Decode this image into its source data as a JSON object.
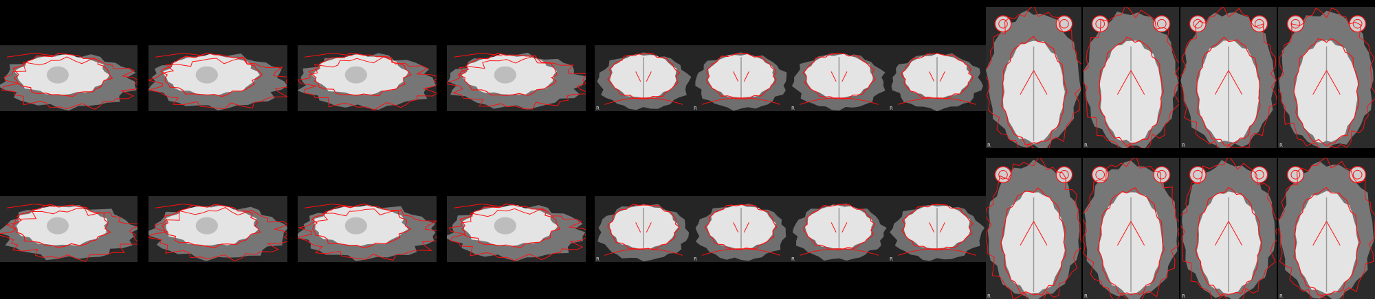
{
  "figure": {
    "rows": [
      {
        "name": "row-1",
        "panels": [
          {
            "view": "sagittal",
            "label": ""
          },
          {
            "view": "sagittal",
            "label": ""
          },
          {
            "view": "sagittal",
            "label": ""
          },
          {
            "view": "sagittal",
            "label": ""
          },
          {
            "view": "coronal",
            "label": "R"
          },
          {
            "view": "coronal",
            "label": "R"
          },
          {
            "view": "coronal",
            "label": "R"
          },
          {
            "view": "coronal",
            "label": "R"
          },
          {
            "view": "axial",
            "label": "R"
          },
          {
            "view": "axial",
            "label": "R"
          },
          {
            "view": "axial",
            "label": "R"
          },
          {
            "view": "axial",
            "label": "R"
          }
        ]
      },
      {
        "name": "row-2",
        "panels": [
          {
            "view": "sagittal",
            "label": ""
          },
          {
            "view": "sagittal",
            "label": ""
          },
          {
            "view": "sagittal",
            "label": ""
          },
          {
            "view": "sagittal",
            "label": ""
          },
          {
            "view": "coronal",
            "label": "R"
          },
          {
            "view": "coronal",
            "label": "R"
          },
          {
            "view": "coronal",
            "label": "R"
          },
          {
            "view": "coronal",
            "label": "R"
          },
          {
            "view": "axial",
            "label": "R"
          },
          {
            "view": "axial",
            "label": "R"
          },
          {
            "view": "axial",
            "label": "R"
          },
          {
            "view": "axial",
            "label": "R"
          }
        ]
      }
    ],
    "colors": {
      "background": "#000000",
      "contour": "#ff1010",
      "tissue": "#c9c9c9",
      "brain": "#e4e4e4",
      "label": "#d8d8d8"
    }
  }
}
